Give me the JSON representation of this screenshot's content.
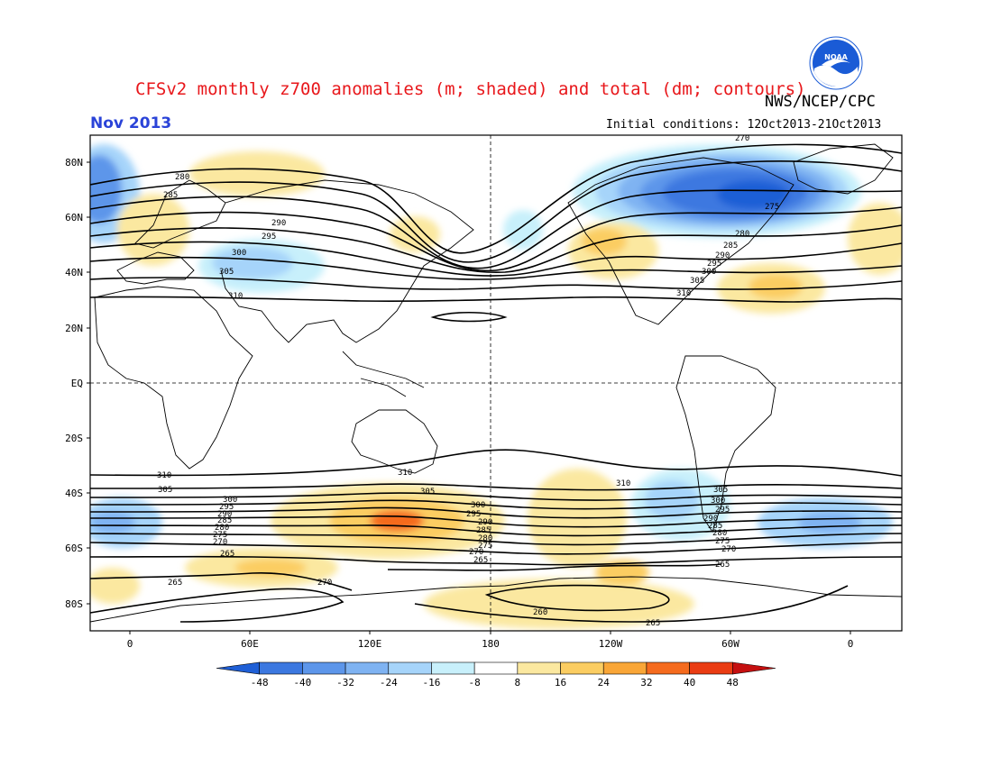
{
  "header": {
    "title": "CFSv2 monthly z700 anomalies (m; shaded) and total (dm; contours)",
    "org": "NWS/NCEP/CPC",
    "month": "Nov 2013",
    "initial_conditions": "Initial conditions: 12Oct2013-21Oct2013",
    "logo_text": "NOAA"
  },
  "axes": {
    "lon_labels": [
      "0",
      "60E",
      "120E",
      "180",
      "120W",
      "60W",
      "0"
    ],
    "lat_labels": [
      "80N",
      "60N",
      "40N",
      "20N",
      "EQ",
      "20S",
      "40S",
      "60S",
      "80S"
    ]
  },
  "legend": {
    "ticks": [
      "-48",
      "-40",
      "-32",
      "-24",
      "-16",
      "-8",
      "8",
      "16",
      "24",
      "32",
      "40",
      "48"
    ],
    "colors": [
      "#1f5fd6",
      "#3c78e0",
      "#5d96ea",
      "#7fb3f2",
      "#a6d4fa",
      "#c8f0fb",
      "#ffffff",
      "#fbe8a0",
      "#fbcd62",
      "#f9a637",
      "#f56b1e",
      "#ea3c13",
      "#c51010"
    ]
  },
  "contour_labels": {
    "nh": [
      "280",
      "285",
      "290",
      "295",
      "300",
      "305",
      "310",
      "270",
      "275",
      "280",
      "285",
      "290",
      "295",
      "300",
      "305",
      "310"
    ],
    "sh": [
      "310",
      "305",
      "300",
      "295",
      "290",
      "285",
      "280",
      "275",
      "270",
      "265",
      "265",
      "270",
      "305",
      "300",
      "295",
      "290",
      "285",
      "280",
      "275",
      "270",
      "265",
      "260",
      "265",
      "310",
      "310",
      "305",
      "300",
      "295",
      "290",
      "285",
      "280",
      "275",
      "270",
      "265"
    ]
  },
  "colors": {
    "title": "#e8171b",
    "month": "#2a43d8",
    "noaa_blue": "#1a5bd6"
  }
}
